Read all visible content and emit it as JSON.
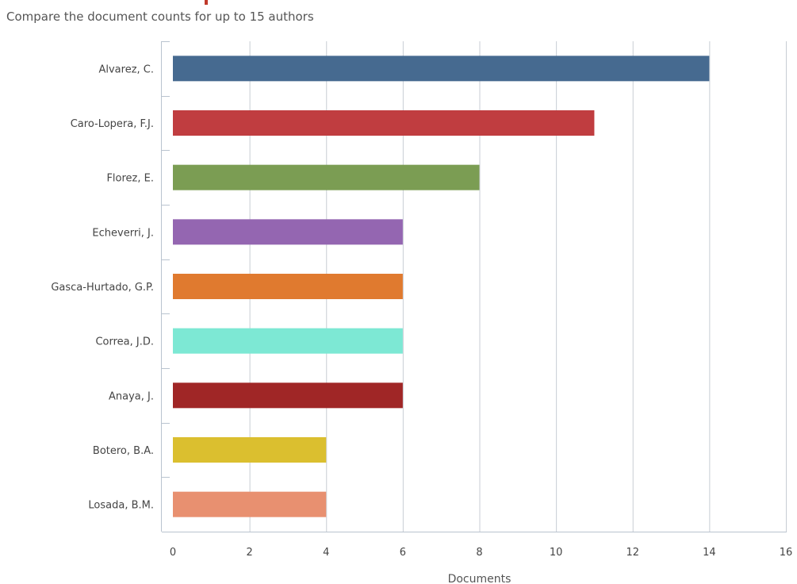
{
  "subtitle": "Compare the document counts for up to 15 authors",
  "colors": {
    "grid": "#c8cdd4",
    "axis": "#b9c3cf"
  },
  "chart_data": {
    "type": "bar",
    "orientation": "horizontal",
    "title": "",
    "subtitle": "Compare the document counts for up to 15 authors",
    "xlabel": "Documents",
    "ylabel": "",
    "xlim": [
      0,
      16
    ],
    "x_ticks": [
      0,
      2,
      4,
      6,
      8,
      10,
      12,
      14,
      16
    ],
    "grid": true,
    "categories": [
      "Alvarez, C.",
      "Caro-Lopera, F.J.",
      "Florez, E.",
      "Echeverri, J.",
      "Gasca-Hurtado, G.P.",
      "Correa, J.D.",
      "Anaya, J.",
      "Botero, B.A.",
      "Losada, B.M."
    ],
    "values": [
      14,
      11,
      8,
      6,
      6,
      6,
      6,
      4,
      4
    ],
    "bar_colors": [
      "#466a90",
      "#c03d40",
      "#7b9d53",
      "#9466b1",
      "#e07a2f",
      "#7de8d4",
      "#a02626",
      "#dbbf2f",
      "#e89070"
    ]
  }
}
